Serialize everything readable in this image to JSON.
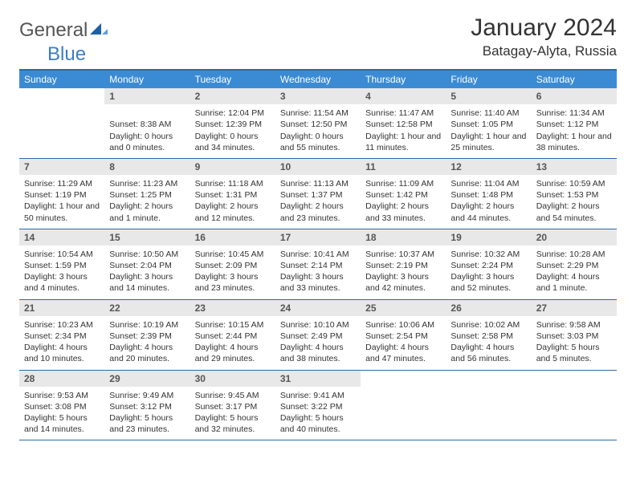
{
  "logo": {
    "text1": "General",
    "text2": "Blue",
    "icon_color": "#1e5fa8"
  },
  "title": "January 2024",
  "location": "Batagay-Alyta, Russia",
  "colors": {
    "header_bg": "#3b8bd4",
    "header_text": "#ffffff",
    "border": "#2c6aa8",
    "daynum_bg": "#e8e8e8",
    "daynum_text": "#555555",
    "body_text": "#333333"
  },
  "day_names": [
    "Sunday",
    "Monday",
    "Tuesday",
    "Wednesday",
    "Thursday",
    "Friday",
    "Saturday"
  ],
  "weeks": [
    [
      {
        "n": "",
        "l": []
      },
      {
        "n": "1",
        "l": [
          "",
          "Sunset: 8:38 AM",
          "Daylight: 0 hours",
          "and 0 minutes."
        ]
      },
      {
        "n": "2",
        "l": [
          "Sunrise: 12:04 PM",
          "Sunset: 12:39 PM",
          "Daylight: 0 hours",
          "and 34 minutes."
        ]
      },
      {
        "n": "3",
        "l": [
          "Sunrise: 11:54 AM",
          "Sunset: 12:50 PM",
          "Daylight: 0 hours",
          "and 55 minutes."
        ]
      },
      {
        "n": "4",
        "l": [
          "Sunrise: 11:47 AM",
          "Sunset: 12:58 PM",
          "Daylight: 1 hour and",
          "11 minutes."
        ]
      },
      {
        "n": "5",
        "l": [
          "Sunrise: 11:40 AM",
          "Sunset: 1:05 PM",
          "Daylight: 1 hour and",
          "25 minutes."
        ]
      },
      {
        "n": "6",
        "l": [
          "Sunrise: 11:34 AM",
          "Sunset: 1:12 PM",
          "Daylight: 1 hour and",
          "38 minutes."
        ]
      }
    ],
    [
      {
        "n": "7",
        "l": [
          "Sunrise: 11:29 AM",
          "Sunset: 1:19 PM",
          "Daylight: 1 hour and",
          "50 minutes."
        ]
      },
      {
        "n": "8",
        "l": [
          "Sunrise: 11:23 AM",
          "Sunset: 1:25 PM",
          "Daylight: 2 hours",
          "and 1 minute."
        ]
      },
      {
        "n": "9",
        "l": [
          "Sunrise: 11:18 AM",
          "Sunset: 1:31 PM",
          "Daylight: 2 hours",
          "and 12 minutes."
        ]
      },
      {
        "n": "10",
        "l": [
          "Sunrise: 11:13 AM",
          "Sunset: 1:37 PM",
          "Daylight: 2 hours",
          "and 23 minutes."
        ]
      },
      {
        "n": "11",
        "l": [
          "Sunrise: 11:09 AM",
          "Sunset: 1:42 PM",
          "Daylight: 2 hours",
          "and 33 minutes."
        ]
      },
      {
        "n": "12",
        "l": [
          "Sunrise: 11:04 AM",
          "Sunset: 1:48 PM",
          "Daylight: 2 hours",
          "and 44 minutes."
        ]
      },
      {
        "n": "13",
        "l": [
          "Sunrise: 10:59 AM",
          "Sunset: 1:53 PM",
          "Daylight: 2 hours",
          "and 54 minutes."
        ]
      }
    ],
    [
      {
        "n": "14",
        "l": [
          "Sunrise: 10:54 AM",
          "Sunset: 1:59 PM",
          "Daylight: 3 hours",
          "and 4 minutes."
        ]
      },
      {
        "n": "15",
        "l": [
          "Sunrise: 10:50 AM",
          "Sunset: 2:04 PM",
          "Daylight: 3 hours",
          "and 14 minutes."
        ]
      },
      {
        "n": "16",
        "l": [
          "Sunrise: 10:45 AM",
          "Sunset: 2:09 PM",
          "Daylight: 3 hours",
          "and 23 minutes."
        ]
      },
      {
        "n": "17",
        "l": [
          "Sunrise: 10:41 AM",
          "Sunset: 2:14 PM",
          "Daylight: 3 hours",
          "and 33 minutes."
        ]
      },
      {
        "n": "18",
        "l": [
          "Sunrise: 10:37 AM",
          "Sunset: 2:19 PM",
          "Daylight: 3 hours",
          "and 42 minutes."
        ]
      },
      {
        "n": "19",
        "l": [
          "Sunrise: 10:32 AM",
          "Sunset: 2:24 PM",
          "Daylight: 3 hours",
          "and 52 minutes."
        ]
      },
      {
        "n": "20",
        "l": [
          "Sunrise: 10:28 AM",
          "Sunset: 2:29 PM",
          "Daylight: 4 hours",
          "and 1 minute."
        ]
      }
    ],
    [
      {
        "n": "21",
        "l": [
          "Sunrise: 10:23 AM",
          "Sunset: 2:34 PM",
          "Daylight: 4 hours",
          "and 10 minutes."
        ]
      },
      {
        "n": "22",
        "l": [
          "Sunrise: 10:19 AM",
          "Sunset: 2:39 PM",
          "Daylight: 4 hours",
          "and 20 minutes."
        ]
      },
      {
        "n": "23",
        "l": [
          "Sunrise: 10:15 AM",
          "Sunset: 2:44 PM",
          "Daylight: 4 hours",
          "and 29 minutes."
        ]
      },
      {
        "n": "24",
        "l": [
          "Sunrise: 10:10 AM",
          "Sunset: 2:49 PM",
          "Daylight: 4 hours",
          "and 38 minutes."
        ]
      },
      {
        "n": "25",
        "l": [
          "Sunrise: 10:06 AM",
          "Sunset: 2:54 PM",
          "Daylight: 4 hours",
          "and 47 minutes."
        ]
      },
      {
        "n": "26",
        "l": [
          "Sunrise: 10:02 AM",
          "Sunset: 2:58 PM",
          "Daylight: 4 hours",
          "and 56 minutes."
        ]
      },
      {
        "n": "27",
        "l": [
          "Sunrise: 9:58 AM",
          "Sunset: 3:03 PM",
          "Daylight: 5 hours",
          "and 5 minutes."
        ]
      }
    ],
    [
      {
        "n": "28",
        "l": [
          "Sunrise: 9:53 AM",
          "Sunset: 3:08 PM",
          "Daylight: 5 hours",
          "and 14 minutes."
        ]
      },
      {
        "n": "29",
        "l": [
          "Sunrise: 9:49 AM",
          "Sunset: 3:12 PM",
          "Daylight: 5 hours",
          "and 23 minutes."
        ]
      },
      {
        "n": "30",
        "l": [
          "Sunrise: 9:45 AM",
          "Sunset: 3:17 PM",
          "Daylight: 5 hours",
          "and 32 minutes."
        ]
      },
      {
        "n": "31",
        "l": [
          "Sunrise: 9:41 AM",
          "Sunset: 3:22 PM",
          "Daylight: 5 hours",
          "and 40 minutes."
        ]
      },
      {
        "n": "",
        "l": []
      },
      {
        "n": "",
        "l": []
      },
      {
        "n": "",
        "l": []
      }
    ]
  ]
}
